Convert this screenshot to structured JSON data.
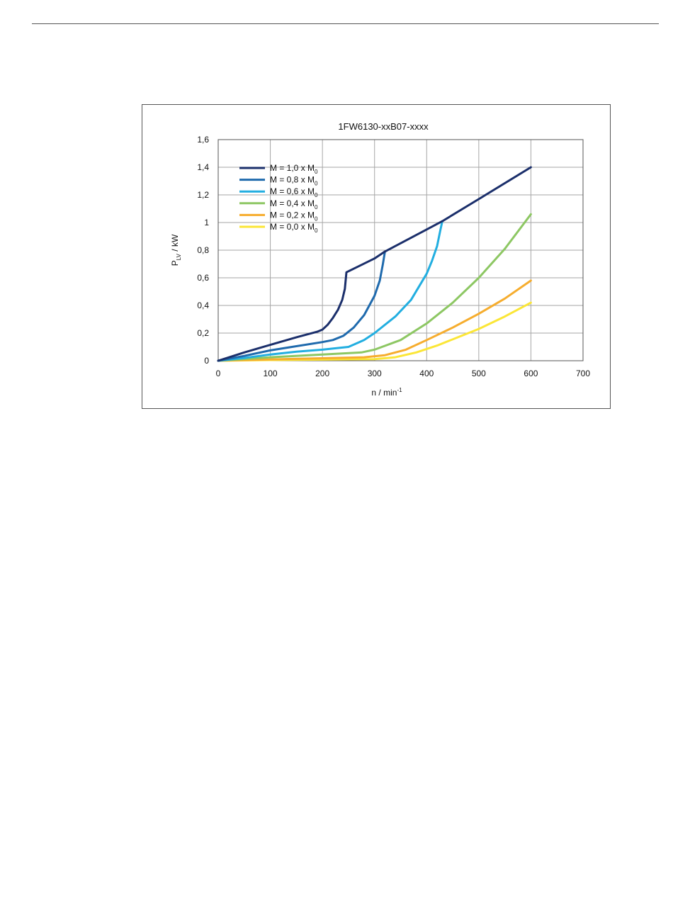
{
  "colors": {
    "frame": "#555555",
    "grid": "#a6a6a6",
    "text": "#111111"
  },
  "chart_data": {
    "type": "line",
    "title": "1FW6130-xxB07-xxxx",
    "xlabel": {
      "main": "n / min",
      "sup": "-1"
    },
    "ylabel": {
      "main": "P",
      "sub": "LV",
      "rest": " / kW"
    },
    "xlim": [
      0,
      700
    ],
    "ylim": [
      0,
      1.6
    ],
    "x_ticks": [
      0,
      100,
      200,
      300,
      400,
      500,
      600,
      700
    ],
    "x_tick_labels": [
      "0",
      "100",
      "200",
      "300",
      "400",
      "500",
      "600",
      "700"
    ],
    "y_ticks": [
      0,
      0.2,
      0.4,
      0.6,
      0.8,
      1.0,
      1.2,
      1.4,
      1.6
    ],
    "y_tick_labels": [
      "0",
      "0,2",
      "0,4",
      "0,6",
      "0,8",
      "1",
      "1,2",
      "1,4",
      "1,6"
    ],
    "grid": true,
    "legend_position": "top-left",
    "series": [
      {
        "name": "M = 1,0 x M",
        "name_sub": "0",
        "color": "#1b2f6b",
        "points": [
          [
            0,
            0
          ],
          [
            50,
            0.06
          ],
          [
            100,
            0.115
          ],
          [
            150,
            0.17
          ],
          [
            190,
            0.21
          ],
          [
            200,
            0.225
          ],
          [
            210,
            0.26
          ],
          [
            220,
            0.31
          ],
          [
            230,
            0.37
          ],
          [
            238,
            0.44
          ],
          [
            243,
            0.52
          ],
          [
            246,
            0.64
          ],
          [
            300,
            0.74
          ],
          [
            320,
            0.79
          ],
          [
            400,
            0.95
          ],
          [
            430,
            1.01
          ],
          [
            500,
            1.17
          ],
          [
            600,
            1.4
          ]
        ]
      },
      {
        "name": "M = 0,8 x M",
        "name_sub": "0",
        "color": "#1f6aad",
        "points": [
          [
            0,
            0
          ],
          [
            50,
            0.035
          ],
          [
            100,
            0.075
          ],
          [
            150,
            0.105
          ],
          [
            200,
            0.135
          ],
          [
            220,
            0.15
          ],
          [
            240,
            0.18
          ],
          [
            260,
            0.24
          ],
          [
            280,
            0.33
          ],
          [
            300,
            0.47
          ],
          [
            310,
            0.58
          ],
          [
            316,
            0.7
          ],
          [
            320,
            0.79
          ]
        ]
      },
      {
        "name": "M = 0,6 x M",
        "name_sub": "0",
        "color": "#22aee0",
        "points": [
          [
            0,
            0
          ],
          [
            50,
            0.02
          ],
          [
            100,
            0.045
          ],
          [
            150,
            0.065
          ],
          [
            200,
            0.08
          ],
          [
            250,
            0.1
          ],
          [
            280,
            0.15
          ],
          [
            300,
            0.2
          ],
          [
            340,
            0.32
          ],
          [
            370,
            0.44
          ],
          [
            400,
            0.63
          ],
          [
            410,
            0.72
          ],
          [
            420,
            0.83
          ],
          [
            426,
            0.94
          ],
          [
            430,
            1.01
          ]
        ]
      },
      {
        "name": "M = 0,4 x M",
        "name_sub": "0",
        "color": "#8dc763",
        "points": [
          [
            0,
            0
          ],
          [
            100,
            0.025
          ],
          [
            200,
            0.045
          ],
          [
            275,
            0.06
          ],
          [
            300,
            0.08
          ],
          [
            350,
            0.15
          ],
          [
            400,
            0.27
          ],
          [
            450,
            0.42
          ],
          [
            500,
            0.6
          ],
          [
            550,
            0.81
          ],
          [
            600,
            1.06
          ]
        ]
      },
      {
        "name": "M = 0,2 x M",
        "name_sub": "0",
        "color": "#f6ad2e",
        "points": [
          [
            0,
            0
          ],
          [
            100,
            0.01
          ],
          [
            200,
            0.018
          ],
          [
            280,
            0.025
          ],
          [
            320,
            0.04
          ],
          [
            360,
            0.08
          ],
          [
            400,
            0.15
          ],
          [
            450,
            0.24
          ],
          [
            500,
            0.34
          ],
          [
            550,
            0.45
          ],
          [
            600,
            0.58
          ]
        ]
      },
      {
        "name": "M = 0,0 x M",
        "name_sub": "0",
        "color": "#fbe637",
        "points": [
          [
            0,
            0
          ],
          [
            100,
            0.005
          ],
          [
            200,
            0.008
          ],
          [
            300,
            0.012
          ],
          [
            340,
            0.025
          ],
          [
            380,
            0.06
          ],
          [
            420,
            0.11
          ],
          [
            460,
            0.17
          ],
          [
            500,
            0.23
          ],
          [
            550,
            0.32
          ],
          [
            600,
            0.42
          ]
        ]
      }
    ]
  }
}
